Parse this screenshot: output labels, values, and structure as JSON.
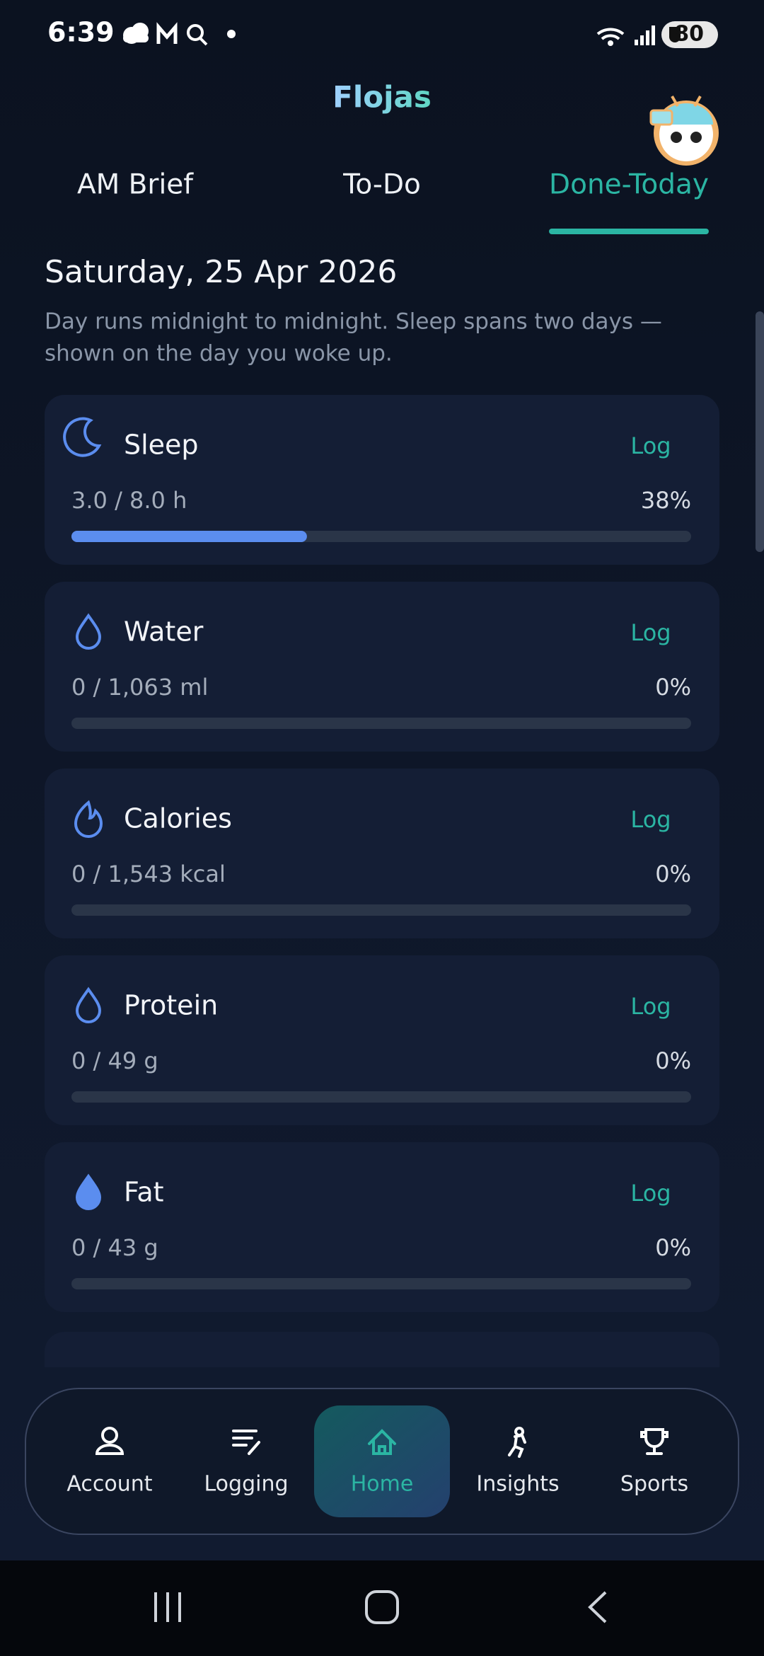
{
  "status_bar": {
    "time": "6:39",
    "battery": "80"
  },
  "header": {
    "title": "Flojas"
  },
  "tabs": {
    "items": [
      "AM Brief",
      "To-Do",
      "Done-Today"
    ],
    "active": 2
  },
  "day": {
    "date": "Saturday, 25 Apr 2026",
    "note": [
      "Day runs midnight to midnight. Sleep spans two days —",
      "shown on the day you woke up."
    ]
  },
  "cards": [
    {
      "name": "Sleep",
      "action": "Log",
      "progress": "3.0 / 8.0 h",
      "percent": "38%"
    },
    {
      "name": "Water",
      "action": "Log",
      "progress": "0 / 1,063 ml",
      "percent": "0%"
    },
    {
      "name": "Calories",
      "action": "Log",
      "progress": "0 / 1,543 kcal",
      "percent": "0%"
    },
    {
      "name": "Protein",
      "action": "Log",
      "progress": "0 / 49 g",
      "percent": "0%"
    },
    {
      "name": "Fat",
      "action": "Log",
      "progress": "0 / 43 g",
      "percent": "0%"
    }
  ],
  "nav": {
    "items": [
      "Account",
      "Logging",
      "Home",
      "Insights",
      "Sports"
    ],
    "active": 2
  }
}
